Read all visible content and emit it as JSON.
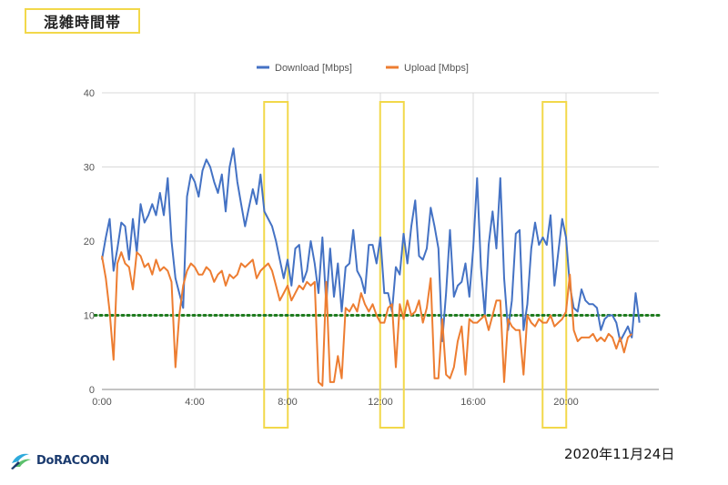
{
  "page": {
    "title": "混雑時間帯",
    "date": "2020年11月24日",
    "logo_text": "DoRACOON"
  },
  "chart_data": {
    "type": "line",
    "x_tick_labels": [
      "0:00",
      "4:00",
      "8:00",
      "12:00",
      "16:00",
      "20:00"
    ],
    "x_tick_hours": [
      0,
      4,
      8,
      12,
      16,
      20
    ],
    "x_range_hours": [
      0,
      24
    ],
    "ylim": [
      0,
      40
    ],
    "y_ticks": [
      0,
      10,
      20,
      30,
      40
    ],
    "reference_line": 10,
    "highlight_hours": [
      7.5,
      12.5,
      19.5
    ],
    "legend_position": "top-center",
    "colors": {
      "download": "#4472c4",
      "upload": "#ed7d31",
      "reference": "#1e7b1e",
      "highlight": "#f2d84a"
    },
    "interval_minutes": 10,
    "series": [
      {
        "name": "Download [Mbps]",
        "values": [
          17.5,
          20.5,
          23,
          16,
          19,
          22.5,
          22,
          17.5,
          23,
          18.5,
          25,
          22.5,
          23.5,
          25,
          23.5,
          26.5,
          23.5,
          28.5,
          20,
          15,
          13,
          11,
          26,
          29,
          28,
          26,
          29.5,
          31,
          30,
          28,
          26.5,
          29,
          24,
          30,
          32.5,
          28,
          25,
          22,
          24.5,
          27,
          25,
          29,
          24,
          23,
          22,
          20,
          17.5,
          15,
          17.5,
          14,
          19,
          19.5,
          14.5,
          16,
          20,
          17,
          13,
          20.5,
          11.5,
          19,
          12.5,
          17,
          10.5,
          16.5,
          17,
          21.5,
          16,
          15,
          13,
          19.5,
          19.5,
          17,
          20.5,
          13,
          13,
          10.5,
          16.5,
          15.5,
          21,
          17,
          22,
          25.5,
          18,
          17.5,
          19,
          24.5,
          22,
          19,
          6.5,
          13,
          21.5,
          12.5,
          14,
          14.5,
          17,
          12.5,
          19,
          28.5,
          16.5,
          10,
          19.5,
          24,
          19,
          28.5,
          15,
          8,
          12,
          21,
          21.5,
          8,
          11.5,
          19,
          22.5,
          19.5,
          20.5,
          19.5,
          23.5,
          14,
          18.5,
          23,
          20.5,
          14,
          11,
          10.5,
          13.5,
          12,
          11.5,
          11.5,
          11,
          8,
          9.5,
          10,
          10,
          9,
          6.5,
          7.5,
          8.5,
          7,
          13,
          9
        ]
      },
      {
        "name": "Upload [Mbps]",
        "values": [
          18,
          15,
          10.5,
          4,
          17,
          18.5,
          17,
          16.5,
          13.5,
          18.5,
          18,
          16.5,
          17,
          15.5,
          17.5,
          16,
          16.5,
          16,
          14.5,
          3,
          10,
          14,
          16,
          17,
          16.5,
          15.5,
          15.5,
          16.5,
          16,
          14.5,
          15.5,
          16,
          14,
          15.5,
          15,
          15.5,
          17,
          16.5,
          17,
          17.5,
          15,
          16,
          16.5,
          17,
          16,
          14,
          12,
          13,
          14,
          12,
          13,
          14,
          13.5,
          14.5,
          14,
          14.5,
          1,
          0.5,
          14.5,
          1,
          1,
          4.5,
          1.5,
          11,
          10.5,
          11.5,
          10.5,
          13,
          11.5,
          10.5,
          11.5,
          10,
          9,
          9,
          11,
          11.5,
          3,
          11.5,
          9.5,
          12,
          10,
          10.5,
          12,
          9,
          11,
          15,
          1.5,
          1.5,
          9.5,
          2,
          1.5,
          3,
          6.5,
          8.5,
          2,
          9.5,
          9,
          9,
          9.5,
          10,
          8,
          10,
          12,
          12,
          1,
          9.5,
          8.5,
          8,
          8,
          2,
          10,
          9,
          8.5,
          9.5,
          9,
          9,
          10,
          8.5,
          9,
          9.5,
          10.5,
          15.5,
          8,
          6.5,
          7,
          7,
          7,
          7.5,
          6.5,
          7,
          6.5,
          7.5,
          7,
          5.5,
          7,
          5,
          7,
          7.5
        ]
      }
    ]
  }
}
